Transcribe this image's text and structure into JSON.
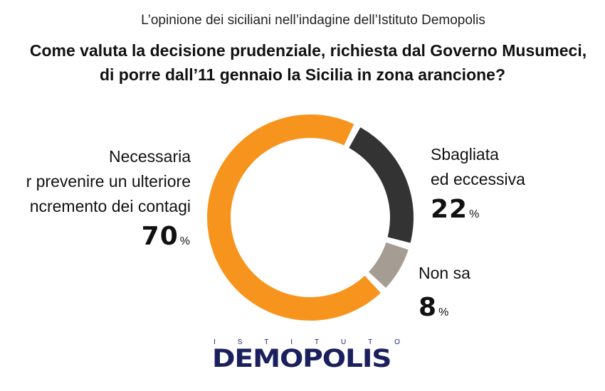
{
  "header": {
    "subtitle": "L’opinione dei siciliani nell’indagine dell’Istituto Demopolis",
    "title_line1": "Come valuta la decisione prudenziale, richiesta dal Governo Musumeci,",
    "title_line2": "di porre dall’11 gennaio la Sicilia in zona arancione?"
  },
  "chart_data": {
    "type": "pie",
    "donut": true,
    "title": "Come valuta la decisione prudenziale, richiesta dal Governo Musumeci, di porre dall’11 gennaio la Sicilia in zona arancione?",
    "slices": [
      {
        "label_lines": [
          "Sbagliata",
          "ed eccessiva"
        ],
        "value": 22,
        "color": "#333333"
      },
      {
        "label_lines": [
          "Non sa"
        ],
        "value": 8,
        "color": "#a59d94"
      },
      {
        "label_lines": [
          "Necessaria",
          "r prevenire un ulteriore",
          "ncremento dei contagi"
        ],
        "value": 70,
        "color": "#f7941d"
      }
    ],
    "unit": "%"
  },
  "logo": {
    "top": "I S T I T U T O",
    "name": "DEMOPOLIS"
  }
}
